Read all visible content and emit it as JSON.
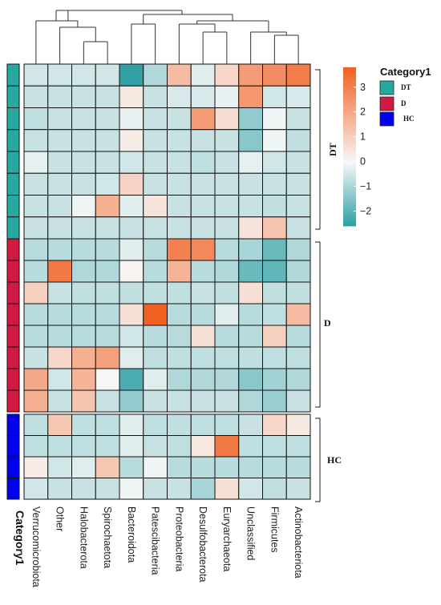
{
  "chart_data": {
    "type": "heatmap",
    "columns": [
      "Verrucomicrobiota",
      "Other",
      "Halobacterota",
      "Spirochaetota",
      "Bacteroidota",
      "Patescibacteria",
      "Proteobacteria",
      "Desulfobacterota",
      "Euryarchaeota",
      "Unclassified",
      "Firmicutes",
      "Actinobacteriota"
    ],
    "row_groups": [
      {
        "label": "DT",
        "rows": 8,
        "color": "#26aaa0"
      },
      {
        "label": "D",
        "rows": 8,
        "color": "#d01a44"
      },
      {
        "label": "HC",
        "rows": 4,
        "color": "#0000ee"
      }
    ],
    "values": [
      [
        -0.5,
        -0.5,
        -0.5,
        -0.5,
        -2.5,
        -0.9,
        1.5,
        -0.3,
        0.8,
        2.3,
        2.7,
        3.1
      ],
      [
        -0.6,
        -0.6,
        -0.6,
        -0.6,
        0.4,
        -0.6,
        -0.4,
        -0.4,
        -0.2,
        2.4,
        -0.5,
        -0.4
      ],
      [
        -0.7,
        -0.6,
        -0.6,
        -0.6,
        -0.2,
        -0.6,
        -0.6,
        2.3,
        0.7,
        -1.3,
        -0.1,
        -0.6
      ],
      [
        -0.6,
        -0.6,
        -0.6,
        -0.6,
        0.3,
        -0.6,
        -0.6,
        -0.6,
        -0.6,
        -1.4,
        -0.1,
        -0.7
      ],
      [
        -0.2,
        -0.6,
        -0.6,
        -0.6,
        -0.5,
        -0.6,
        -0.6,
        -0.7,
        -0.6,
        -0.2,
        -0.5,
        -0.6
      ],
      [
        -0.6,
        -0.6,
        -0.6,
        -0.5,
        0.9,
        -0.6,
        -0.6,
        -0.6,
        -0.6,
        -0.6,
        -0.6,
        -0.6
      ],
      [
        -0.6,
        -0.6,
        -0.1,
        1.8,
        -0.3,
        0.5,
        -0.6,
        -0.6,
        -0.6,
        -0.6,
        -0.7,
        -0.6
      ],
      [
        -0.6,
        -0.6,
        -0.6,
        -0.6,
        -0.6,
        -0.6,
        -0.6,
        -0.6,
        -0.6,
        0.5,
        1.3,
        -0.6
      ]
    ],
    "values_group2": [
      [
        -0.8,
        -0.8,
        -0.8,
        -0.8,
        -0.3,
        -0.8,
        3.0,
        2.8,
        -0.8,
        -1.0,
        -1.8,
        -0.9
      ],
      [
        -0.8,
        3.2,
        -0.9,
        -0.9,
        0.1,
        -0.8,
        1.7,
        -0.8,
        -0.9,
        -1.8,
        -1.9,
        -0.9
      ],
      [
        1.0,
        -0.6,
        -0.7,
        -0.7,
        -0.7,
        -0.7,
        -0.7,
        -0.6,
        -0.7,
        0.6,
        -0.7,
        -0.7
      ],
      [
        -0.8,
        -0.8,
        -0.8,
        -0.8,
        0.6,
        3.8,
        -0.8,
        -0.8,
        -0.3,
        -0.8,
        -0.7,
        1.5
      ],
      [
        -0.8,
        -0.8,
        -0.8,
        -0.8,
        -0.5,
        -0.8,
        -0.8,
        0.6,
        -0.8,
        -0.8,
        1.0,
        -0.8
      ],
      [
        -0.6,
        0.8,
        1.8,
        2.2,
        -0.3,
        -0.7,
        -0.7,
        -0.7,
        -0.7,
        -0.7,
        -0.7,
        -0.7
      ],
      [
        2.0,
        -0.5,
        1.7,
        0.0,
        -2.2,
        -0.3,
        -0.9,
        -0.9,
        -0.9,
        -1.4,
        -1.1,
        -0.9
      ],
      [
        1.8,
        -0.6,
        1.3,
        -0.6,
        -1.3,
        -0.6,
        -0.6,
        -0.6,
        -0.6,
        -0.9,
        -1.2,
        -0.6
      ]
    ],
    "values_group3": [
      [
        -0.7,
        1.2,
        -0.7,
        -0.7,
        -0.3,
        -0.7,
        -0.7,
        -0.7,
        -0.7,
        -0.6,
        0.8,
        0.4
      ],
      [
        -0.7,
        -0.7,
        -0.7,
        -0.7,
        -0.3,
        -0.6,
        -0.7,
        0.4,
        3.2,
        -0.7,
        -0.7,
        -0.7
      ],
      [
        0.3,
        -0.5,
        -0.3,
        1.2,
        -0.8,
        -0.1,
        -0.8,
        -0.8,
        -0.8,
        -0.8,
        -0.8,
        -0.8
      ],
      [
        -0.5,
        -0.6,
        -0.6,
        -0.6,
        -0.1,
        -0.6,
        -0.6,
        -1.0,
        0.6,
        -0.5,
        -0.7,
        -0.6
      ]
    ],
    "color_scale": {
      "min": -2.6,
      "mid": 0,
      "max": 3.8,
      "low": "#2a9ea3",
      "midc": "#f7f7f7",
      "high": "#f26122"
    },
    "colorbar": {
      "ticks": [
        3,
        2,
        1,
        0,
        -1,
        -2
      ],
      "tick_labels": [
        "3",
        "2",
        "1",
        "0",
        "−1",
        "−2"
      ]
    },
    "legend": {
      "title": "Category1",
      "items": [
        {
          "label": "DT",
          "color": "#26aaa0"
        },
        {
          "label": "D",
          "color": "#d01a44"
        },
        {
          "label": "HC",
          "color": "#0000ee"
        }
      ]
    },
    "row_axis_label": "Category1"
  }
}
